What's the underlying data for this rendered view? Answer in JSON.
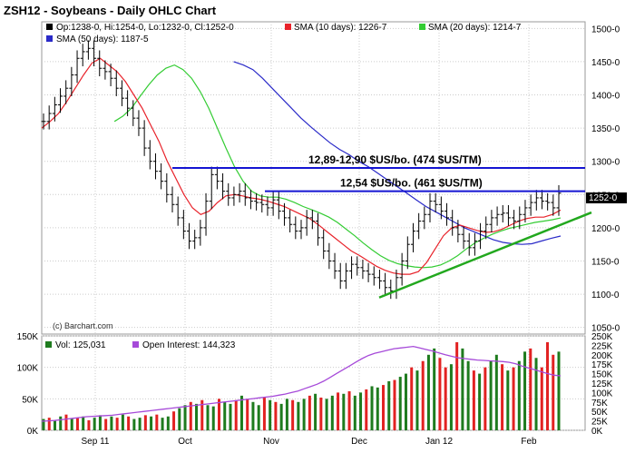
{
  "header": {
    "title": "ZSH12 - Soybeans - Daily OHLC Chart",
    "quote": "Op:1238-0, Hi:1254-0, Lo:1232-0, Cl:1252-0",
    "sma10": "SMA (10 days): 1226-7",
    "sma20": "SMA (20 days): 1214-7",
    "sma50": "SMA (50 days): 1187-5",
    "last_price_badge": "1252-0",
    "watermark": "(c) Barchart.com"
  },
  "lower_legend": {
    "volume": "Vol: 125,031",
    "open_interest": "Open Interest: 144,323"
  },
  "annotations": {
    "upper_line_label": "12,89-12,90 $US/bo. (474 $US/TM)",
    "lower_line_label": "12,54 $US/bo. (461 $US/TM)"
  },
  "colors": {
    "background": "#ffffff",
    "grid": "#cccccc",
    "sma10": "#e8222a",
    "sma20": "#33cc33",
    "sma50": "#2a2ac8",
    "resistance": "#1414d2",
    "trendline": "#22a81e",
    "volume_up": "#1e7b1e",
    "volume_down": "#e22222",
    "open_interest": "#a64ad9"
  },
  "chart_data": [
    {
      "type": "ohlc",
      "title": "ZSH12 - Soybeans - Daily OHLC Chart",
      "x_labels": [
        "Sep 11",
        "Oct",
        "Nov",
        "Dec",
        "Jan 12",
        "Feb"
      ],
      "y_ticks": [
        "1050-0",
        "1100-0",
        "1150-0",
        "1200-0",
        "1250-0",
        "1300-0",
        "1350-0",
        "1400-0",
        "1450-0",
        "1500-0"
      ],
      "ylim": [
        1040,
        1510
      ],
      "grid": true,
      "close_series": [
        1360,
        1372,
        1385,
        1398,
        1410,
        1430,
        1455,
        1465,
        1470,
        1455,
        1440,
        1435,
        1425,
        1410,
        1395,
        1380,
        1365,
        1350,
        1320,
        1300,
        1285,
        1270,
        1250,
        1235,
        1215,
        1195,
        1180,
        1185,
        1200,
        1240,
        1280,
        1270,
        1255,
        1245,
        1250,
        1255,
        1245,
        1240,
        1238,
        1235,
        1230,
        1242,
        1225,
        1215,
        1205,
        1195,
        1200,
        1215,
        1210,
        1185,
        1165,
        1150,
        1135,
        1120,
        1135,
        1145,
        1140,
        1135,
        1130,
        1125,
        1120,
        1110,
        1105,
        1125,
        1150,
        1175,
        1195,
        1210,
        1220,
        1240,
        1235,
        1225,
        1215,
        1200,
        1190,
        1180,
        1170,
        1180,
        1195,
        1205,
        1215,
        1220,
        1222,
        1215,
        1210,
        1220,
        1230,
        1238,
        1245,
        1240,
        1238,
        1230,
        1252
      ],
      "series": [
        {
          "name": "SMA (10 days)",
          "last": 1226.7,
          "values": [
            1350,
            1360,
            1372,
            1390,
            1410,
            1430,
            1448,
            1455,
            1445,
            1435,
            1420,
            1400,
            1380,
            1355,
            1330,
            1300,
            1275,
            1250,
            1230,
            1220,
            1225,
            1238,
            1248,
            1250,
            1248,
            1245,
            1243,
            1240,
            1236,
            1232,
            1226,
            1220,
            1214,
            1205,
            1195,
            1185,
            1175,
            1165,
            1158,
            1150,
            1142,
            1136,
            1132,
            1130,
            1130,
            1134,
            1148,
            1168,
            1188,
            1200,
            1204,
            1200,
            1196,
            1193,
            1194,
            1198,
            1204,
            1210,
            1214,
            1216,
            1216,
            1220,
            1226.7
          ]
        },
        {
          "name": "SMA (20 days)",
          "last": 1214.7,
          "values": [
            1360,
            1368,
            1380,
            1398,
            1415,
            1430,
            1440,
            1445,
            1438,
            1425,
            1405,
            1380,
            1350,
            1320,
            1292,
            1270,
            1255,
            1248,
            1246,
            1246,
            1243,
            1238,
            1232,
            1227,
            1222,
            1216,
            1208,
            1198,
            1188,
            1177,
            1167,
            1158,
            1151,
            1146,
            1143,
            1141,
            1140,
            1141,
            1144,
            1150,
            1158,
            1168,
            1177,
            1184,
            1190,
            1195,
            1199,
            1202,
            1205,
            1208,
            1210,
            1212,
            1214.7
          ]
        },
        {
          "name": "SMA (50 days)",
          "last": 1187.5,
          "values": [
            1450,
            1445,
            1438,
            1425,
            1410,
            1395,
            1380,
            1365,
            1352,
            1340,
            1328,
            1318,
            1310,
            1300,
            1292,
            1282,
            1272,
            1262,
            1252,
            1242,
            1232,
            1224,
            1216,
            1208,
            1200,
            1194,
            1188,
            1182,
            1178,
            1176,
            1175,
            1176,
            1180,
            1184,
            1187.5
          ]
        }
      ],
      "resistance_levels": [
        {
          "label": "12,89-12,90 $US/bo. (474 $US/TM)",
          "value": 1290
        },
        {
          "label": "12,54 $US/bo. (461 $US/TM)",
          "value": 1255
        }
      ],
      "trendline": {
        "from": 1095,
        "to": 1223
      }
    },
    {
      "type": "bar",
      "title": "Volume / Open Interest",
      "y_ticks_left": [
        "0K",
        "50K",
        "100K",
        "150K"
      ],
      "y_ticks_right": [
        "0K",
        "25K",
        "50K",
        "75K",
        "100K",
        "125K",
        "150K",
        "175K",
        "200K",
        "225K",
        "250K"
      ],
      "ylim_left": [
        0,
        150000
      ],
      "ylim_right": [
        0,
        250000
      ],
      "series": [
        {
          "name": "Vol",
          "last": 125031,
          "values": [
            18,
            20,
            15,
            22,
            25,
            18,
            20,
            22,
            16,
            20,
            24,
            18,
            22,
            20,
            25,
            22,
            18,
            20,
            24,
            22,
            25,
            20,
            22,
            30,
            35,
            40,
            45,
            42,
            48,
            40,
            38,
            50,
            45,
            42,
            48,
            55,
            50,
            45,
            40,
            52,
            48,
            45,
            42,
            50,
            48,
            45,
            50,
            55,
            58,
            52,
            50,
            55,
            60,
            58,
            62,
            55,
            60,
            65,
            70,
            68,
            72,
            78,
            80,
            85,
            90,
            100,
            95,
            110,
            120,
            130,
            115,
            100,
            105,
            140,
            130,
            110,
            95,
            90,
            100,
            110,
            120,
            105,
            95,
            100,
            110,
            125,
            130,
            115,
            100,
            140,
            120,
            125
          ]
        },
        {
          "name": "Open Interest",
          "last": 144323,
          "values": [
            24,
            25,
            26,
            28,
            30,
            32,
            34,
            36,
            37,
            38,
            39,
            40,
            42,
            44,
            46,
            48,
            50,
            52,
            54,
            56,
            58,
            60,
            62,
            64,
            66,
            68,
            70,
            72,
            74,
            76,
            78,
            80,
            82,
            84,
            86,
            88,
            90,
            93,
            96,
            100,
            104,
            110,
            116,
            122,
            130,
            140,
            150,
            160,
            170,
            180,
            190,
            198,
            204,
            208,
            212,
            216,
            218,
            220,
            222,
            218,
            214,
            210,
            205,
            200,
            196,
            192,
            190,
            188,
            186,
            185,
            184,
            183,
            182,
            180,
            176,
            170,
            165,
            160,
            155,
            150,
            146,
            144.3
          ]
        }
      ],
      "volume_colors": [
        "g",
        "r",
        "g",
        "g",
        "r",
        "g",
        "r",
        "g",
        "r",
        "g",
        "g",
        "r",
        "g",
        "r",
        "g",
        "r",
        "g",
        "g",
        "r",
        "g",
        "r",
        "g",
        "g",
        "r",
        "g",
        "g",
        "r",
        "g",
        "r",
        "g",
        "g",
        "r",
        "g",
        "g",
        "r",
        "g",
        "r",
        "g",
        "g",
        "r",
        "g",
        "r",
        "g",
        "g",
        "r",
        "g",
        "g",
        "r",
        "g",
        "r",
        "g",
        "g",
        "r",
        "g",
        "r",
        "g",
        "g",
        "r",
        "g",
        "g",
        "r",
        "g",
        "r",
        "g",
        "g",
        "r",
        "g",
        "r",
        "g",
        "g",
        "r",
        "r",
        "g",
        "r",
        "g",
        "g",
        "r",
        "g",
        "r",
        "g",
        "g",
        "r",
        "g",
        "r",
        "g",
        "g",
        "r",
        "g",
        "r",
        "r",
        "r",
        "g"
      ]
    }
  ]
}
